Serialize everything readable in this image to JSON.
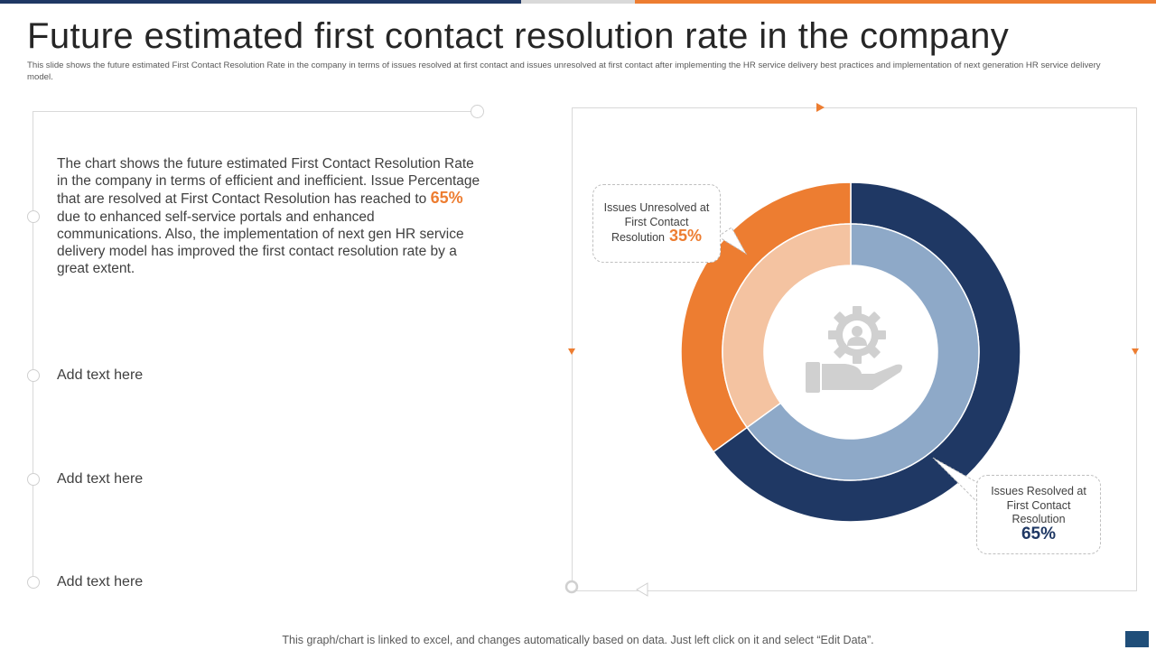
{
  "header": {
    "title": "Future estimated first contact resolution rate in the company",
    "subtitle": "This slide shows the future estimated First Contact Resolution Rate in the company in terms of issues resolved at first contact and issues unresolved at first contact after implementing the HR service delivery best practices and implementation of next generation HR service delivery model."
  },
  "description": {
    "part1": "The chart shows the future estimated First Contact Resolution Rate in the company in terms of efficient and inefficient. Issue Percentage that are resolved at First Contact Resolution has reached to ",
    "highlight": "65%",
    "part2": " due to enhanced self-service portals and enhanced communications. Also, the implementation of next gen HR service delivery model has improved the first contact resolution rate by a great extent."
  },
  "placeholders": [
    "Add text here",
    "Add text here",
    "Add text here"
  ],
  "callouts": {
    "unresolved": {
      "label": "Issues Unresolved at First Contact Resolution",
      "value": "35%"
    },
    "resolved": {
      "label": "Issues Resolved at First Contact Resolution",
      "value": "65%"
    }
  },
  "footer": "This graph/chart is linked to excel, and changes automatically based on data. Just left click on it and select “Edit Data”.",
  "colors": {
    "navy": "#1f3864",
    "orange": "#ed7d31",
    "light_blue": "#8ea9c8",
    "light_orange": "#f4c3a1",
    "icon_gray": "#d0d0d0"
  },
  "chart_data": {
    "type": "pie",
    "style": "double donut",
    "categories": [
      "Issues Resolved at First Contact Resolution",
      "Issues Unresolved at First Contact Resolution"
    ],
    "values": [
      65,
      35
    ],
    "unit": "%"
  }
}
